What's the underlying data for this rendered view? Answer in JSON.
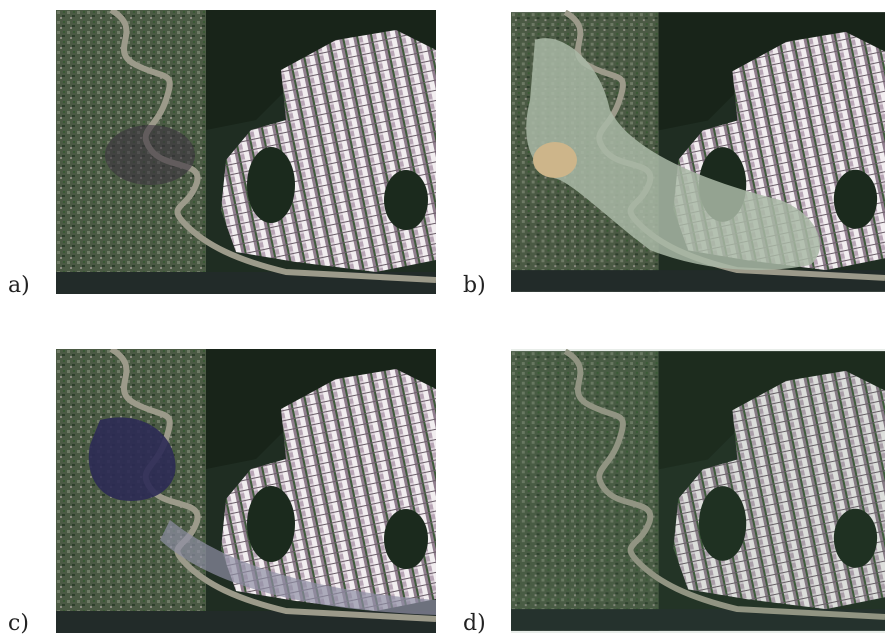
{
  "panels": [
    {
      "label": "a)"
    },
    {
      "label": "b)"
    },
    {
      "label": "c)"
    },
    {
      "label": "d)"
    }
  ]
}
